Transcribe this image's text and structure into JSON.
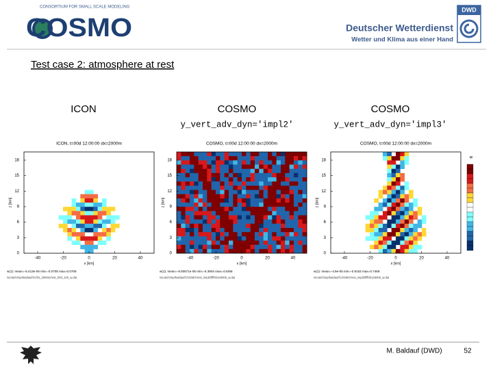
{
  "header": {
    "logo_left": "COSMO",
    "logo_left_subtitle": "CONSORTIUM FOR SMALL SCALE MODELING",
    "logo_right_badge": "DWD",
    "logo_right_name": "Deutscher Wetterdienst",
    "logo_right_slogan": "Wetter und Klima aus einer Hand"
  },
  "title": "Test case 2: atmosphere at rest",
  "panels": [
    {
      "heading": "ICON",
      "subheading": null,
      "plot_title": "ICON, t=00d 12:00:00 dx=2000m",
      "stats": "w(1): mean=-5.413e-06  min=-0.0705  max=0.0706",
      "path": "/scratch/mp/baldauf/ICON_2000m/rest_00d_12h_w.dat"
    },
    {
      "heading": "COSMO",
      "subheading": "y_vert_adv_dyn='impl2'",
      "plot_title": "COSMO, t=00d 12:00:00 dx=2000m",
      "stats": "w(1): mean=-9.00571e-05  min=-5.3904  max=4.5458",
      "path": "/scratch/mp/baldauf/COSMO/rest_impl2/lfff00120000_w.dat"
    },
    {
      "heading": "COSMO",
      "subheading": "y_vert_adv_dyn='impl3'",
      "plot_title": "COSMO, t=00d 12:00:00 dx=2000m",
      "stats": "w(1): mean=-4.9e-05  min=-0.9153  max=0.7469",
      "path": "/scratch/mp/baldauf/COSMO/rest_impl3/lfff00120000_w.dat"
    }
  ],
  "axes": {
    "y_label": "z [km]",
    "x_label": "x [km]",
    "yticks": [
      18,
      15,
      12,
      9,
      6,
      3,
      0
    ],
    "xticks": [
      -40,
      -20,
      0,
      20,
      40
    ]
  },
  "colorbar_label": "w",
  "footer": {
    "author": "M. Baldauf (DWD)",
    "page": "52"
  }
}
